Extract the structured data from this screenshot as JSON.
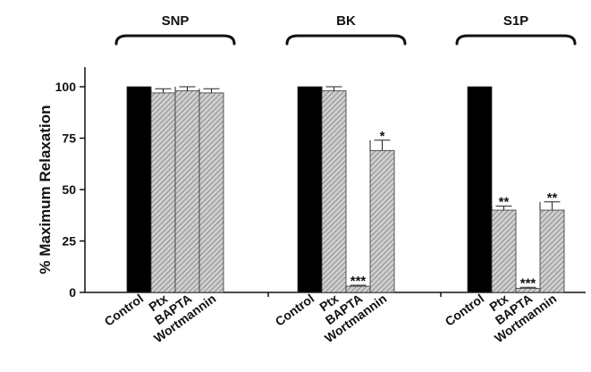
{
  "chart_data": {
    "type": "bar",
    "ylabel": "% Maximum Relaxation",
    "ylim": [
      0,
      110
    ],
    "yticks": [
      0,
      25,
      50,
      75,
      100
    ],
    "categories": [
      "Control",
      "Ptx",
      "BAPTA",
      "Wortmannin"
    ],
    "groups": [
      {
        "name": "SNP",
        "values": [
          100,
          97,
          98,
          97
        ],
        "errors": [
          0,
          2,
          2,
          2
        ],
        "significance": [
          "",
          "",
          "",
          ""
        ]
      },
      {
        "name": "BK",
        "values": [
          100,
          98,
          3,
          69
        ],
        "errors": [
          0,
          2,
          0.5,
          5
        ],
        "significance": [
          "",
          "",
          "***",
          "*"
        ]
      },
      {
        "name": "S1P",
        "values": [
          100,
          40,
          2,
          40
        ],
        "errors": [
          0,
          2,
          0.5,
          4
        ],
        "significance": [
          "",
          "**",
          "***",
          "**"
        ]
      }
    ],
    "colors": {
      "control": "#000000",
      "treatment": "#c8c8c8",
      "hatch": "#6a6a6a"
    },
    "grid": false,
    "legend": "none"
  }
}
